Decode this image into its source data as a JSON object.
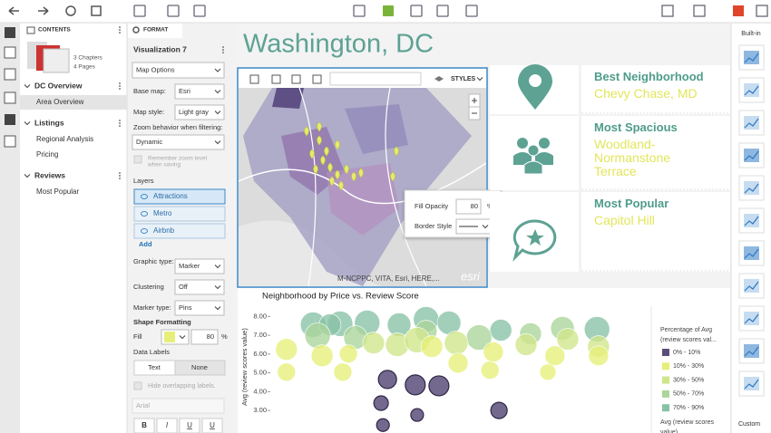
{
  "contents": {
    "title": "CONTENTS",
    "thumb_lines": [
      "3 Chapters",
      "4 Pages"
    ],
    "sections": [
      {
        "title": "DC Overview",
        "items": [
          "Area Overview"
        ]
      },
      {
        "title": "Listings",
        "items": [
          "Regional Analysis",
          "Pricing"
        ]
      },
      {
        "title": "Reviews",
        "items": [
          "Most Popular"
        ]
      }
    ]
  },
  "format": {
    "title": "FORMAT",
    "visualization": "Visualization 7",
    "options": "Map Options",
    "fields": [
      {
        "label": "Base map:",
        "value": "Esri"
      },
      {
        "label": "Map style:",
        "value": "Light gray"
      }
    ],
    "zoom_label": "Zoom behavior when filtering:",
    "zoom_value": "Dynamic",
    "remember": [
      "Remember zoom level",
      "when saving"
    ],
    "layers_label": "Layers",
    "layers": [
      "Attractions",
      "Metro",
      "Airbnb"
    ],
    "add": "Add",
    "fields2": [
      {
        "label": "Graphic type:",
        "value": "Marker"
      },
      {
        "label": "Clustering",
        "value": "Off"
      },
      {
        "label": "Marker type:",
        "value": "Pins"
      }
    ],
    "shape_formatting": "Shape Formatting",
    "fill_label": "Fill",
    "fill_value": "80",
    "fill_unit": "%",
    "data_labels": "Data Labels",
    "tabs": [
      "Text",
      "None"
    ],
    "hide_overlap": "Hide overlapping labels.",
    "font": "Arial",
    "styles": [
      "B",
      "I",
      "U",
      "U"
    ]
  },
  "canvas": {
    "title": "Washington, DC",
    "map": {
      "styles": "STYLES",
      "attribution": "M-NCPPC, VITA, Esri, HERE,...",
      "logo": "esri",
      "popup": {
        "opacity_label": "Fill Opacity",
        "opacity_value": "80",
        "opacity_unit": "%",
        "border_label": "Border Style"
      }
    },
    "cards": [
      {
        "heading": "Best Neighborhood",
        "value": "Chevy Chase, MD"
      },
      {
        "heading": "Most Spacious",
        "value": "Woodland-Normanstone Terrace"
      },
      {
        "heading": "Most Popular",
        "value": "Capitol Hill"
      }
    ]
  },
  "rail": {
    "builtin": "Built-in",
    "custom": "Custom"
  },
  "chart_data": {
    "type": "bubble",
    "title": "Neighborhood by Price vs. Review Score",
    "y_label": "Avg (review scores value)",
    "xlim": [
      0,
      100
    ],
    "ylim": [
      1.8,
      8.45
    ],
    "grid": false,
    "yticks": [
      {
        "value": 8,
        "label": "8.00"
      },
      {
        "value": 7,
        "label": "7.00"
      },
      {
        "value": 6,
        "label": "6.00"
      },
      {
        "value": 5,
        "label": "5.00"
      },
      {
        "value": 4,
        "label": "4.00"
      },
      {
        "value": 3,
        "label": "3.00"
      }
    ],
    "legend_title": [
      "Percentage of Avg",
      "(review scores val..."
    ],
    "size_legend_title": [
      "Avg (review scores",
      "value)"
    ],
    "series": [
      {
        "name": "0% - 10%",
        "color": "#5b4e7a",
        "x": [
          31.2,
          38.6,
          44.9,
          29.5,
          39.1,
          30.0,
          60.9
        ],
        "values": [
          4.65,
          4.36,
          4.31,
          3.39,
          2.76,
          2.22,
          3.0
        ],
        "sizes": [
          10,
          11,
          11,
          8,
          7,
          7,
          9
        ]
      },
      {
        "name": "10% - 30%",
        "color": "#e6ef78",
        "x": [
          4.3,
          4.3,
          19.3,
          20.8,
          43.0,
          50.0,
          58.5,
          73.9,
          75.8,
          87.4,
          59.4,
          13.8
        ],
        "values": [
          6.25,
          5.04,
          5.04,
          6.01,
          6.4,
          5.52,
          5.14,
          5.04,
          5.91,
          5.91,
          6.11,
          5.91
        ],
        "sizes": [
          12,
          10,
          10,
          10,
          12,
          11,
          10,
          9,
          11,
          11,
          11,
          12
        ]
      },
      {
        "name": "30% - 50%",
        "color": "#cfe58a",
        "x": [
          33.8,
          49.5,
          39.1,
          68.1,
          27.5,
          87.4,
          79.2
        ],
        "values": [
          6.5,
          6.59,
          6.74,
          6.5,
          6.59,
          6.4,
          6.79
        ],
        "sizes": [
          13,
          13,
          14,
          12,
          12,
          12,
          12
        ]
      },
      {
        "name": "50% - 70%",
        "color": "#abd59a",
        "x": [
          12.6,
          22.7,
          69.3,
          55.6,
          41.5,
          77.8
        ],
        "values": [
          6.98,
          6.88,
          7.08,
          6.88,
          7.22,
          7.37
        ],
        "sizes": [
          14,
          13,
          12,
          14,
          12,
          13
        ]
      },
      {
        "name": "70% - 90%",
        "color": "#88c2a5",
        "x": [
          11.4,
          18.6,
          25.8,
          34.3,
          41.5,
          47.6,
          61.4,
          87.0,
          15.9
        ],
        "values": [
          7.56,
          7.61,
          7.66,
          7.56,
          7.85,
          7.66,
          7.27,
          7.32,
          7.56
        ],
        "sizes": [
          14,
          14,
          14,
          13,
          14,
          13,
          12,
          14,
          12
        ]
      }
    ]
  }
}
